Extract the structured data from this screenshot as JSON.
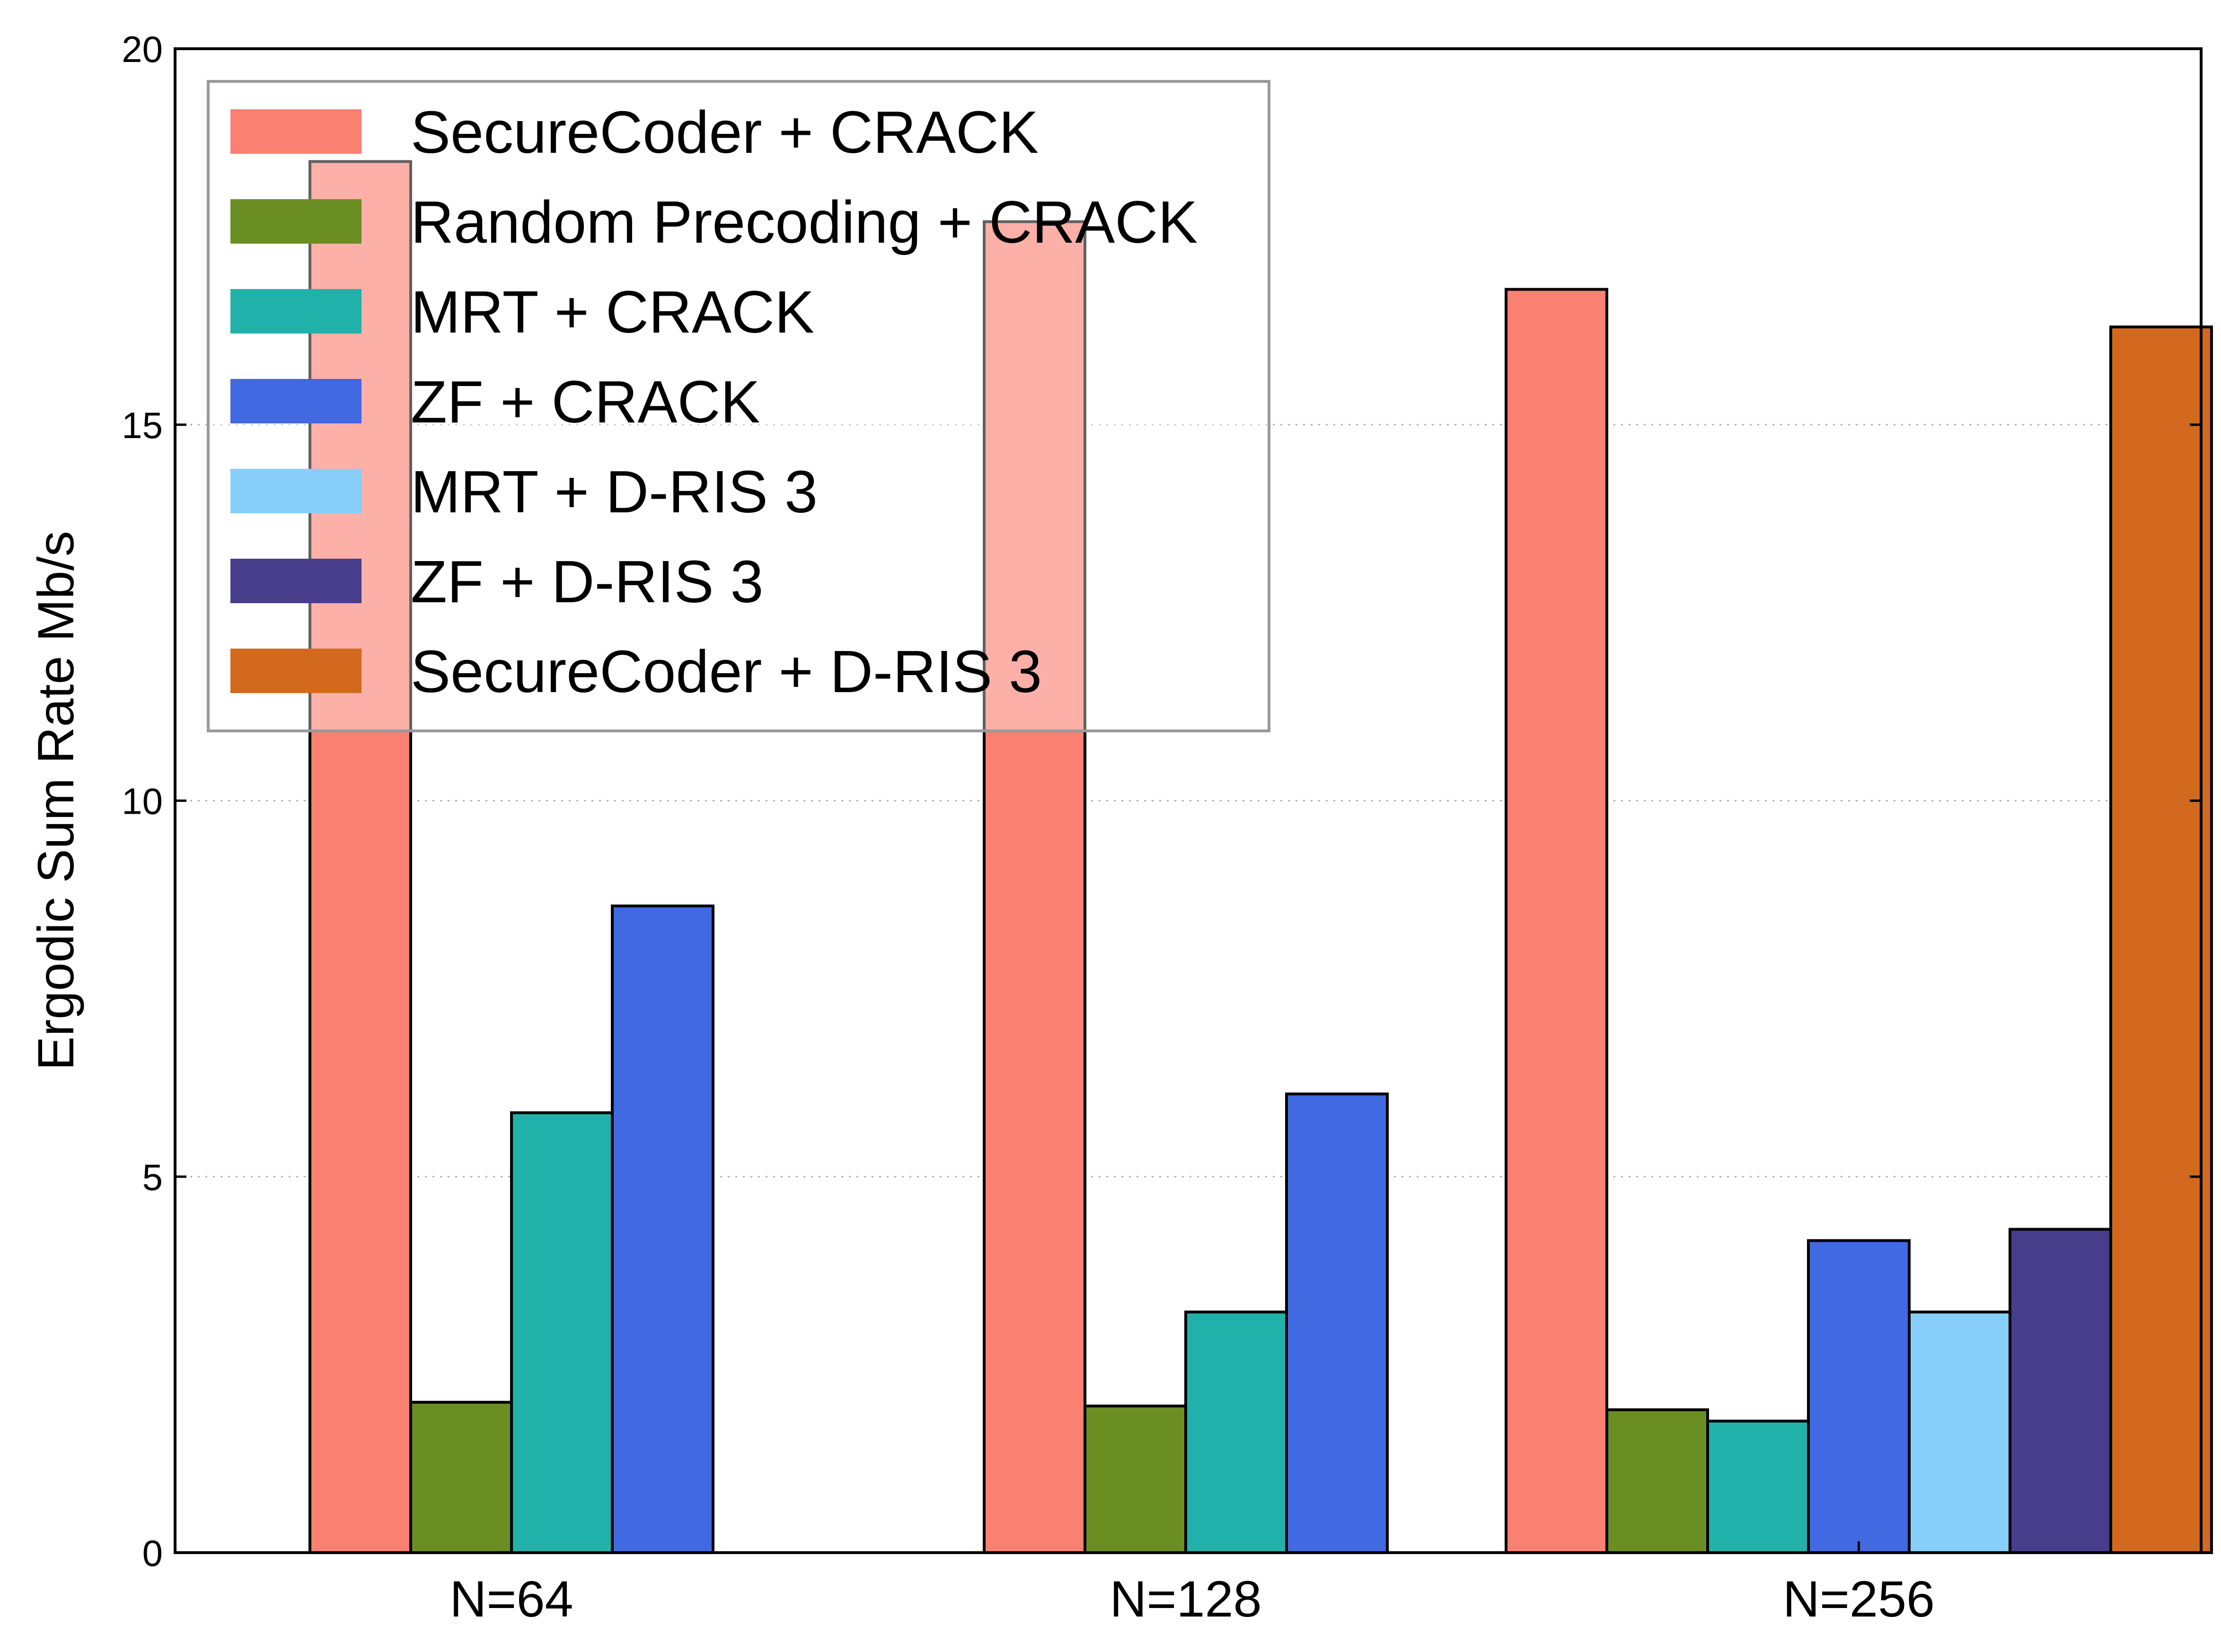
{
  "chart_data": {
    "type": "bar",
    "title": "",
    "xlabel": "",
    "ylabel": "Ergodic Sum Rate Mb/s",
    "ylim": [
      0,
      20
    ],
    "yticks": [
      0,
      5,
      10,
      15,
      20
    ],
    "grid": "horizontal-dotted",
    "legend_position": "top-left",
    "categories": [
      "N=64",
      "N=128",
      "N=256"
    ],
    "series": [
      {
        "name": "SecureCoder + CRACK",
        "color": "#FA8072",
        "values": [
          18.5,
          17.7,
          16.8
        ]
      },
      {
        "name": "Random Precoding + CRACK",
        "color": "#6B8E23",
        "values": [
          2.0,
          1.95,
          1.9
        ]
      },
      {
        "name": "MRT + CRACK",
        "color": "#20B2AA",
        "values": [
          5.85,
          3.2,
          1.75
        ]
      },
      {
        "name": "ZF + CRACK",
        "color": "#4169E1",
        "values": [
          8.6,
          6.1,
          4.15
        ]
      },
      {
        "name": "MRT + D-RIS 3",
        "color": "#87CEFA",
        "values": [
          null,
          null,
          3.2
        ]
      },
      {
        "name": "ZF + D-RIS 3",
        "color": "#483D8B",
        "values": [
          null,
          null,
          4.3
        ]
      },
      {
        "name": "SecureCoder + D-RIS 3",
        "color": "#D2691E",
        "values": [
          null,
          null,
          16.3
        ]
      }
    ]
  }
}
